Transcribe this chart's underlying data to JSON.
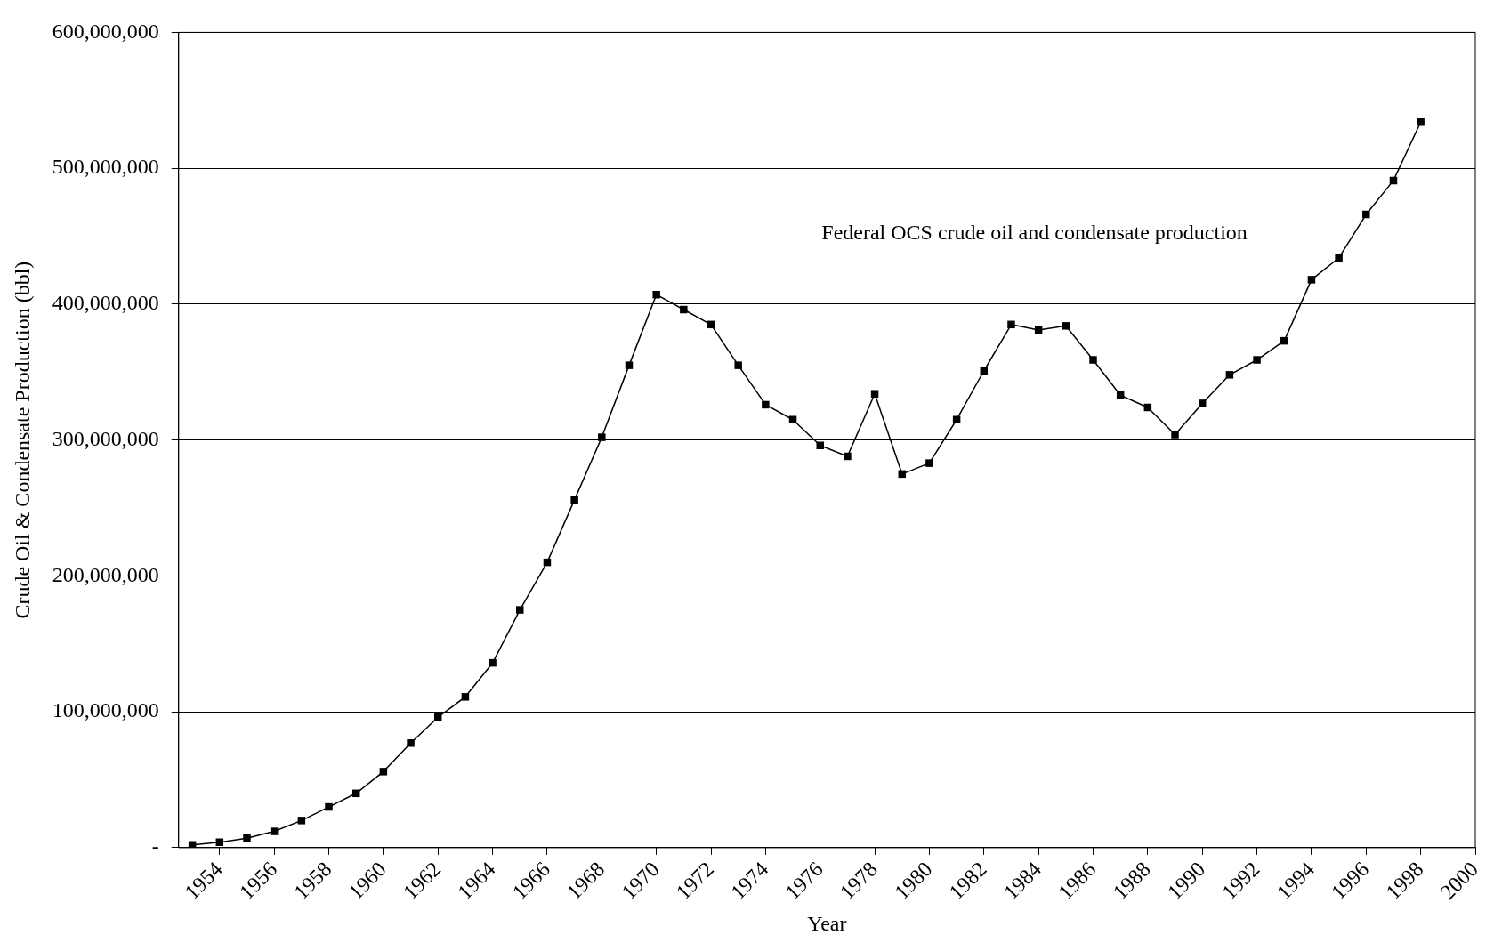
{
  "chart_data": {
    "type": "line",
    "xlabel": "Year",
    "ylabel": "Crude Oil & Condensate Production (bbl)",
    "annotations": [
      "Federal OCS crude oil and condensate production"
    ],
    "x": [
      1953,
      1954,
      1955,
      1956,
      1957,
      1958,
      1959,
      1960,
      1961,
      1962,
      1963,
      1964,
      1965,
      1966,
      1967,
      1968,
      1969,
      1970,
      1971,
      1972,
      1973,
      1974,
      1975,
      1976,
      1977,
      1978,
      1979,
      1980,
      1981,
      1982,
      1983,
      1984,
      1985,
      1986,
      1987,
      1988,
      1989,
      1990,
      1991,
      1992,
      1993,
      1994,
      1995,
      1996,
      1997,
      1998
    ],
    "series": [
      {
        "color": "#000000",
        "values": [
          2000000,
          4000000,
          7000000,
          12000000,
          20000000,
          30000000,
          40000000,
          56000000,
          77000000,
          96000000,
          111000000,
          136000000,
          175000000,
          210000000,
          256000000,
          302000000,
          355000000,
          407000000,
          396000000,
          385000000,
          355000000,
          326000000,
          315000000,
          296000000,
          288000000,
          334000000,
          275000000,
          283000000,
          315000000,
          351000000,
          385000000,
          381000000,
          384000000,
          359000000,
          333000000,
          324000000,
          304000000,
          327000000,
          348000000,
          359000000,
          373000000,
          418000000,
          434000000,
          466000000,
          491000000,
          534000000
        ]
      }
    ],
    "xlim": [
      1952.5,
      2000
    ],
    "xticks": [
      1954,
      1956,
      1958,
      1960,
      1962,
      1964,
      1966,
      1968,
      1970,
      1972,
      1974,
      1976,
      1978,
      1980,
      1982,
      1984,
      1986,
      1988,
      1990,
      1992,
      1994,
      1996,
      1998,
      2000
    ],
    "ylim": [
      0,
      600000000
    ],
    "yticks": [
      {
        "value": 0,
        "label": "-"
      },
      {
        "value": 100000000,
        "label": "100,000,000"
      },
      {
        "value": 200000000,
        "label": "200,000,000"
      },
      {
        "value": 300000000,
        "label": "300,000,000"
      },
      {
        "value": 400000000,
        "label": "400,000,000"
      },
      {
        "value": 500000000,
        "label": "500,000,000"
      },
      {
        "value": 600000000,
        "label": "600,000,000"
      }
    ],
    "grid": "y",
    "legend": false,
    "marker": "square",
    "line_style": "solid"
  }
}
